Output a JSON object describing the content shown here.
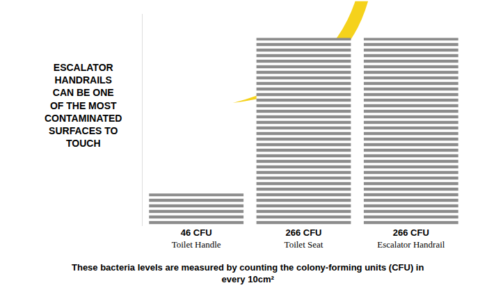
{
  "chart_data": {
    "type": "bar",
    "title": "ESCALATOR HANDRAILS CAN BE ONE OF THE MOST CONTAMINATED SURFACES TO TOUCH",
    "annotations": [
      "These bacteria levels are measured by counting the colony-forming units (CFU) in every 10cm²"
    ],
    "categories": [
      "Toilet Handle",
      "Toilet Seat",
      "Escalator Handrail"
    ],
    "values": [
      46,
      266,
      266
    ],
    "value_labels": [
      "46 CFU",
      "266 CFU",
      "266 CFU"
    ],
    "data_labels": true,
    "color": "#8c8c8c",
    "ylim": [
      0,
      300
    ],
    "yticks": [],
    "tick_labels": "x",
    "grid": false
  }
}
